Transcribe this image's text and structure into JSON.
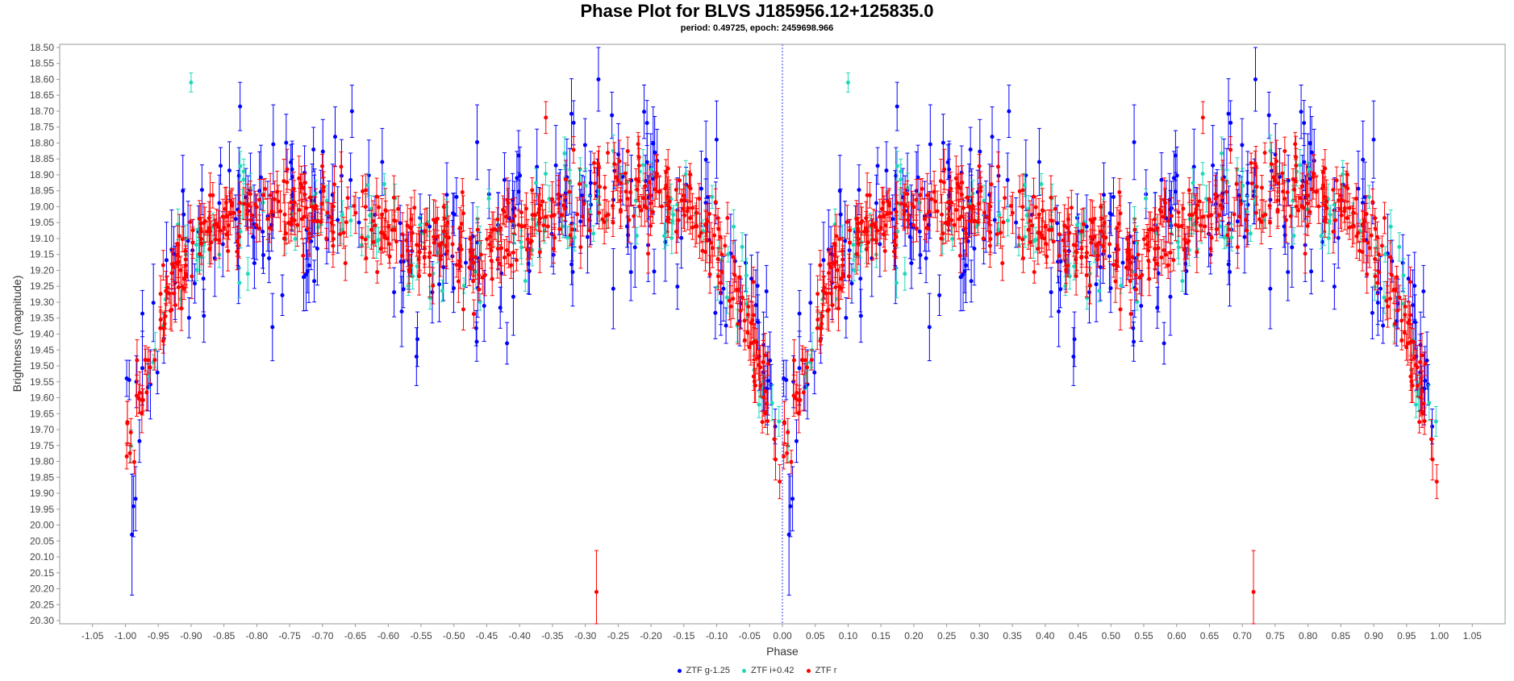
{
  "chart_data": {
    "type": "scatter",
    "title": "Phase Plot for BLVS J185956.12+125835.0",
    "subtitle": "period: 0.49725, epoch: 2459698.966",
    "xlabel": "Phase",
    "ylabel": "Brightness (magnitude)",
    "xlim": [
      -1.1,
      1.1
    ],
    "ylim": [
      20.31,
      18.49
    ],
    "y_inverted": true,
    "x_ticks": [
      "-1.05",
      "-1.00",
      "-0.95",
      "-0.90",
      "-0.85",
      "-0.80",
      "-0.75",
      "-0.70",
      "-0.65",
      "-0.60",
      "-0.55",
      "-0.50",
      "-0.45",
      "-0.40",
      "-0.35",
      "-0.30",
      "-0.25",
      "-0.20",
      "-0.15",
      "-0.10",
      "-0.05",
      "0.00",
      "0.05",
      "0.10",
      "0.15",
      "0.20",
      "0.25",
      "0.30",
      "0.35",
      "0.40",
      "0.45",
      "0.50",
      "0.55",
      "0.60",
      "0.65",
      "0.70",
      "0.75",
      "0.80",
      "0.85",
      "0.90",
      "0.95",
      "1.00",
      "1.05"
    ],
    "y_ticks": [
      "18.50",
      "18.55",
      "18.60",
      "18.65",
      "18.70",
      "18.75",
      "18.80",
      "18.85",
      "18.90",
      "18.95",
      "19.00",
      "19.05",
      "19.10",
      "19.15",
      "19.20",
      "19.25",
      "19.30",
      "19.35",
      "19.40",
      "19.45",
      "19.50",
      "19.55",
      "19.60",
      "19.65",
      "19.70",
      "19.75",
      "19.80",
      "19.85",
      "19.90",
      "19.95",
      "20.00",
      "20.05",
      "20.10",
      "20.15",
      "20.20",
      "20.25",
      "20.30"
    ],
    "grid": false,
    "legend_position": "bottom",
    "reference_line_x": 0.0,
    "light_curve": {
      "phase": [
        0.0,
        0.02,
        0.05,
        0.08,
        0.12,
        0.18,
        0.25,
        0.35,
        0.45,
        0.52,
        0.58,
        0.65,
        0.72,
        0.78,
        0.85,
        0.9,
        0.94,
        0.97,
        1.0
      ],
      "magnitude": [
        19.72,
        19.62,
        19.4,
        19.2,
        19.07,
        19.02,
        19.0,
        19.04,
        19.12,
        19.15,
        19.1,
        19.02,
        18.96,
        18.95,
        19.0,
        19.1,
        19.3,
        19.55,
        19.72
      ]
    },
    "series": [
      {
        "name": "ZTF g-1.25",
        "color": "#0000ff",
        "count": 230,
        "scatter": 0.14,
        "error": 0.09
      },
      {
        "name": "ZTF i+0.42",
        "color": "#20d8b8",
        "count": 140,
        "scatter": 0.08,
        "error": 0.04
      },
      {
        "name": "ZTF r",
        "color": "#ff0000",
        "count": 520,
        "scatter": 0.07,
        "error": 0.05
      }
    ],
    "outliers": [
      {
        "series": "ZTF r",
        "phase": -0.283,
        "magnitude": 20.21,
        "error": 0.13
      },
      {
        "series": "ZTF r",
        "phase": 0.717,
        "magnitude": 20.21,
        "error": 0.13
      },
      {
        "series": "ZTF g-1.25",
        "phase": -0.99,
        "magnitude": 20.03,
        "error": 0.19
      },
      {
        "series": "ZTF g-1.25",
        "phase": 0.01,
        "magnitude": 20.03,
        "error": 0.19
      },
      {
        "series": "ZTF i+0.42",
        "phase": -0.9,
        "magnitude": 18.61,
        "error": 0.03
      },
      {
        "series": "ZTF i+0.42",
        "phase": 0.1,
        "magnitude": 18.61,
        "error": 0.03
      },
      {
        "series": "ZTF r",
        "phase": -0.36,
        "magnitude": 18.72,
        "error": 0.05
      },
      {
        "series": "ZTF r",
        "phase": 0.64,
        "magnitude": 18.72,
        "error": 0.05
      },
      {
        "series": "ZTF g-1.25",
        "phase": -0.28,
        "magnitude": 18.6,
        "error": 0.1
      },
      {
        "series": "ZTF g-1.25",
        "phase": 0.72,
        "magnitude": 18.6,
        "error": 0.1
      }
    ]
  }
}
